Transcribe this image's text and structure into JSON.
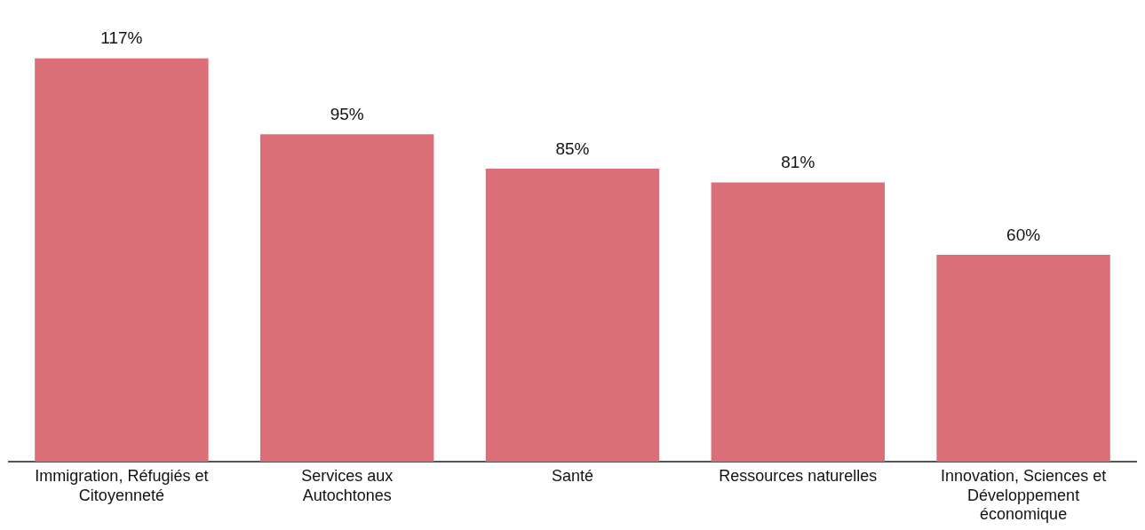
{
  "chart_data": {
    "type": "bar",
    "categories": [
      "Immigration, Réfugiés et Citoyenneté",
      "Services aux Autochtones",
      "Santé",
      "Ressources naturelles",
      "Innovation, Sciences et Développement économique"
    ],
    "values": [
      117,
      95,
      85,
      81,
      60
    ],
    "value_labels": [
      "117%",
      "95%",
      "85%",
      "81%",
      "60%"
    ],
    "color": "#db6f77",
    "grid": false,
    "legend": false
  }
}
